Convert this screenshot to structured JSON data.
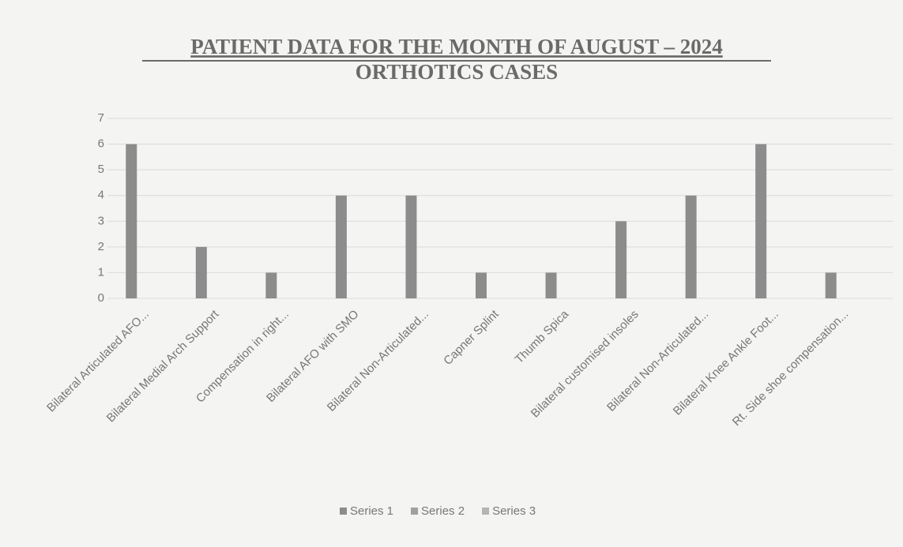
{
  "chart_data": {
    "type": "bar",
    "title": "PATIENT DATA FOR THE MONTH OF AUGUST – 2024",
    "subtitle": "ORTHOTICS CASES",
    "categories": [
      "Bilateral Articulated AFO...",
      "Bilateral Medial Arch Support",
      "Compensation in right...",
      "Bilateral AFO with SMO",
      "Bilateral Non-Articulated...",
      "Capner Splint",
      "Thumb Spica",
      "Bilateral customised insoles",
      "Bilateral Non-Articulated...",
      "Bilateral Knee Ankle Foot...",
      "Rt. Side shoe compensation..."
    ],
    "series": [
      {
        "name": "Series 1",
        "color": "#8c8c8c",
        "values": [
          6,
          2,
          1,
          4,
          4,
          1,
          1,
          3,
          4,
          6,
          1
        ]
      },
      {
        "name": "Series 2",
        "color": "#a0a0a0",
        "values": [
          null,
          null,
          null,
          null,
          null,
          null,
          null,
          null,
          null,
          null,
          null
        ]
      },
      {
        "name": "Series 3",
        "color": "#b4b4b4",
        "values": [
          null,
          null,
          null,
          null,
          null,
          null,
          null,
          null,
          null,
          null,
          null
        ]
      }
    ],
    "ylim": [
      0,
      7
    ],
    "yticks": [
      0,
      1,
      2,
      3,
      4,
      5,
      6,
      7
    ],
    "grid": true,
    "legend": "bottom"
  }
}
